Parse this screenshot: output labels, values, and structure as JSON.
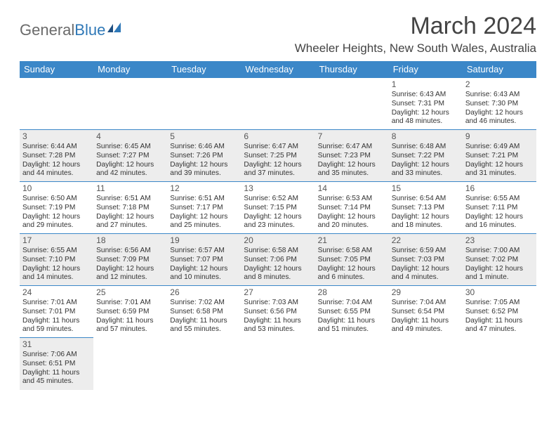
{
  "logo": {
    "general": "General",
    "blue": "Blue"
  },
  "title": "March 2024",
  "location": "Wheeler Heights, New South Wales, Australia",
  "colors": {
    "header_bg": "#3b87c8",
    "header_fg": "#ffffff",
    "shade_bg": "#ededed",
    "border": "#3b87c8",
    "title_color": "#444444",
    "text": "#333333"
  },
  "day_headers": [
    "Sunday",
    "Monday",
    "Tuesday",
    "Wednesday",
    "Thursday",
    "Friday",
    "Saturday"
  ],
  "weeks": [
    [
      null,
      null,
      null,
      null,
      null,
      {
        "n": "1",
        "sr": "Sunrise: 6:43 AM",
        "ss": "Sunset: 7:31 PM",
        "d1": "Daylight: 12 hours",
        "d2": "and 48 minutes."
      },
      {
        "n": "2",
        "sr": "Sunrise: 6:43 AM",
        "ss": "Sunset: 7:30 PM",
        "d1": "Daylight: 12 hours",
        "d2": "and 46 minutes."
      }
    ],
    [
      {
        "n": "3",
        "sr": "Sunrise: 6:44 AM",
        "ss": "Sunset: 7:28 PM",
        "d1": "Daylight: 12 hours",
        "d2": "and 44 minutes."
      },
      {
        "n": "4",
        "sr": "Sunrise: 6:45 AM",
        "ss": "Sunset: 7:27 PM",
        "d1": "Daylight: 12 hours",
        "d2": "and 42 minutes."
      },
      {
        "n": "5",
        "sr": "Sunrise: 6:46 AM",
        "ss": "Sunset: 7:26 PM",
        "d1": "Daylight: 12 hours",
        "d2": "and 39 minutes."
      },
      {
        "n": "6",
        "sr": "Sunrise: 6:47 AM",
        "ss": "Sunset: 7:25 PM",
        "d1": "Daylight: 12 hours",
        "d2": "and 37 minutes."
      },
      {
        "n": "7",
        "sr": "Sunrise: 6:47 AM",
        "ss": "Sunset: 7:23 PM",
        "d1": "Daylight: 12 hours",
        "d2": "and 35 minutes."
      },
      {
        "n": "8",
        "sr": "Sunrise: 6:48 AM",
        "ss": "Sunset: 7:22 PM",
        "d1": "Daylight: 12 hours",
        "d2": "and 33 minutes."
      },
      {
        "n": "9",
        "sr": "Sunrise: 6:49 AM",
        "ss": "Sunset: 7:21 PM",
        "d1": "Daylight: 12 hours",
        "d2": "and 31 minutes."
      }
    ],
    [
      {
        "n": "10",
        "sr": "Sunrise: 6:50 AM",
        "ss": "Sunset: 7:19 PM",
        "d1": "Daylight: 12 hours",
        "d2": "and 29 minutes."
      },
      {
        "n": "11",
        "sr": "Sunrise: 6:51 AM",
        "ss": "Sunset: 7:18 PM",
        "d1": "Daylight: 12 hours",
        "d2": "and 27 minutes."
      },
      {
        "n": "12",
        "sr": "Sunrise: 6:51 AM",
        "ss": "Sunset: 7:17 PM",
        "d1": "Daylight: 12 hours",
        "d2": "and 25 minutes."
      },
      {
        "n": "13",
        "sr": "Sunrise: 6:52 AM",
        "ss": "Sunset: 7:15 PM",
        "d1": "Daylight: 12 hours",
        "d2": "and 23 minutes."
      },
      {
        "n": "14",
        "sr": "Sunrise: 6:53 AM",
        "ss": "Sunset: 7:14 PM",
        "d1": "Daylight: 12 hours",
        "d2": "and 20 minutes."
      },
      {
        "n": "15",
        "sr": "Sunrise: 6:54 AM",
        "ss": "Sunset: 7:13 PM",
        "d1": "Daylight: 12 hours",
        "d2": "and 18 minutes."
      },
      {
        "n": "16",
        "sr": "Sunrise: 6:55 AM",
        "ss": "Sunset: 7:11 PM",
        "d1": "Daylight: 12 hours",
        "d2": "and 16 minutes."
      }
    ],
    [
      {
        "n": "17",
        "sr": "Sunrise: 6:55 AM",
        "ss": "Sunset: 7:10 PM",
        "d1": "Daylight: 12 hours",
        "d2": "and 14 minutes."
      },
      {
        "n": "18",
        "sr": "Sunrise: 6:56 AM",
        "ss": "Sunset: 7:09 PM",
        "d1": "Daylight: 12 hours",
        "d2": "and 12 minutes."
      },
      {
        "n": "19",
        "sr": "Sunrise: 6:57 AM",
        "ss": "Sunset: 7:07 PM",
        "d1": "Daylight: 12 hours",
        "d2": "and 10 minutes."
      },
      {
        "n": "20",
        "sr": "Sunrise: 6:58 AM",
        "ss": "Sunset: 7:06 PM",
        "d1": "Daylight: 12 hours",
        "d2": "and 8 minutes."
      },
      {
        "n": "21",
        "sr": "Sunrise: 6:58 AM",
        "ss": "Sunset: 7:05 PM",
        "d1": "Daylight: 12 hours",
        "d2": "and 6 minutes."
      },
      {
        "n": "22",
        "sr": "Sunrise: 6:59 AM",
        "ss": "Sunset: 7:03 PM",
        "d1": "Daylight: 12 hours",
        "d2": "and 4 minutes."
      },
      {
        "n": "23",
        "sr": "Sunrise: 7:00 AM",
        "ss": "Sunset: 7:02 PM",
        "d1": "Daylight: 12 hours",
        "d2": "and 1 minute."
      }
    ],
    [
      {
        "n": "24",
        "sr": "Sunrise: 7:01 AM",
        "ss": "Sunset: 7:01 PM",
        "d1": "Daylight: 11 hours",
        "d2": "and 59 minutes."
      },
      {
        "n": "25",
        "sr": "Sunrise: 7:01 AM",
        "ss": "Sunset: 6:59 PM",
        "d1": "Daylight: 11 hours",
        "d2": "and 57 minutes."
      },
      {
        "n": "26",
        "sr": "Sunrise: 7:02 AM",
        "ss": "Sunset: 6:58 PM",
        "d1": "Daylight: 11 hours",
        "d2": "and 55 minutes."
      },
      {
        "n": "27",
        "sr": "Sunrise: 7:03 AM",
        "ss": "Sunset: 6:56 PM",
        "d1": "Daylight: 11 hours",
        "d2": "and 53 minutes."
      },
      {
        "n": "28",
        "sr": "Sunrise: 7:04 AM",
        "ss": "Sunset: 6:55 PM",
        "d1": "Daylight: 11 hours",
        "d2": "and 51 minutes."
      },
      {
        "n": "29",
        "sr": "Sunrise: 7:04 AM",
        "ss": "Sunset: 6:54 PM",
        "d1": "Daylight: 11 hours",
        "d2": "and 49 minutes."
      },
      {
        "n": "30",
        "sr": "Sunrise: 7:05 AM",
        "ss": "Sunset: 6:52 PM",
        "d1": "Daylight: 11 hours",
        "d2": "and 47 minutes."
      }
    ],
    [
      {
        "n": "31",
        "sr": "Sunrise: 7:06 AM",
        "ss": "Sunset: 6:51 PM",
        "d1": "Daylight: 11 hours",
        "d2": "and 45 minutes."
      },
      null,
      null,
      null,
      null,
      null,
      null
    ]
  ]
}
